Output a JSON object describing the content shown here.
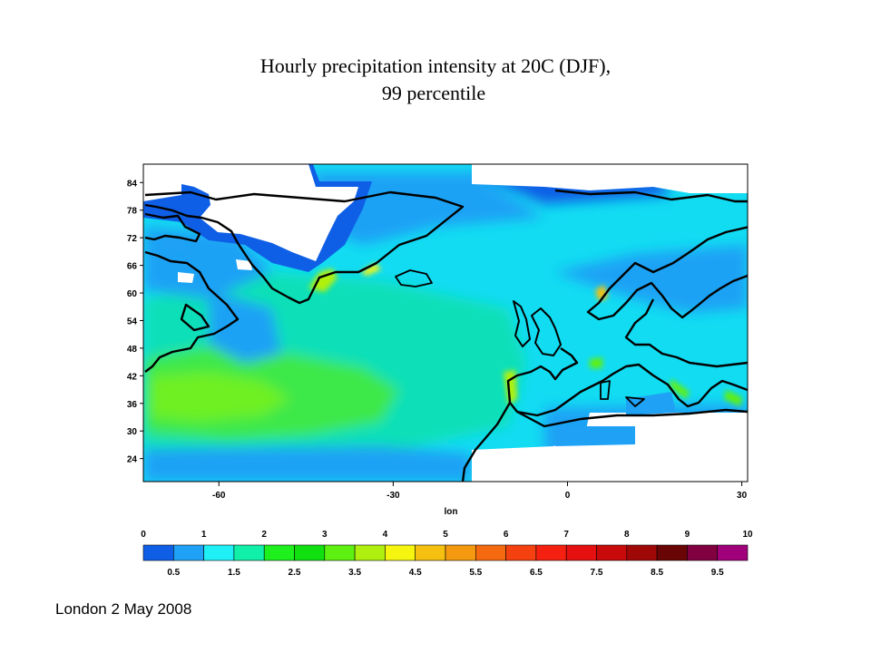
{
  "title": {
    "line1": "Hourly precipitation intensity  at 20C (DJF),",
    "line2": "99 percentile"
  },
  "map": {
    "xlabel": "lon",
    "lon_ticks": [
      -60,
      -30,
      0,
      30
    ],
    "lat_ticks": [
      84,
      78,
      72,
      66,
      60,
      54,
      48,
      42,
      36,
      30,
      24
    ],
    "lon_range": [
      -73,
      31
    ],
    "lat_range": [
      19,
      88
    ]
  },
  "colorbar": {
    "top_labels": [
      "0",
      "1",
      "2",
      "3",
      "4",
      "5",
      "6",
      "7",
      "8",
      "9",
      "10"
    ],
    "bottom_labels": [
      "0.5",
      "1.5",
      "2.5",
      "3.5",
      "4.5",
      "5.5",
      "6.5",
      "7.5",
      "8.5",
      "9.5"
    ],
    "colors": [
      "#0f5fe6",
      "#1fa2f5",
      "#1ff0f5",
      "#10f0a8",
      "#1ef01e",
      "#10e010",
      "#5ef010",
      "#b0f010",
      "#f5f510",
      "#f5c010",
      "#f59a10",
      "#f56a10",
      "#f54010",
      "#f52010",
      "#e61010",
      "#c80a0a",
      "#a00808",
      "#6a0505",
      "#800040",
      "#a0007a"
    ]
  },
  "footer": "London 2 May 2008"
}
